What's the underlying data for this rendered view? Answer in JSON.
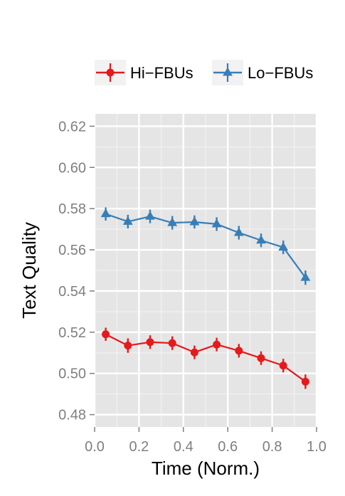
{
  "chart_data": {
    "type": "line",
    "xlabel": "Time (Norm.)",
    "ylabel": "Text Quality",
    "xlim": [
      0.0,
      1.0
    ],
    "ylim": [
      0.474,
      0.626
    ],
    "x_ticks": [
      "0.0",
      "0.2",
      "0.4",
      "0.6",
      "0.8",
      "1.0"
    ],
    "y_ticks": [
      "0.48",
      "0.50",
      "0.52",
      "0.54",
      "0.56",
      "0.58",
      "0.60",
      "0.62"
    ],
    "grid": true,
    "legend_position": "top",
    "x": [
      0.05,
      0.15,
      0.25,
      0.35,
      0.45,
      0.55,
      0.65,
      0.75,
      0.85,
      0.95
    ],
    "series": [
      {
        "name": "Hi−FBUs",
        "color": "#e41a1c",
        "marker": "circle",
        "values": [
          0.519,
          0.5135,
          0.5152,
          0.5147,
          0.5102,
          0.514,
          0.511,
          0.5074,
          0.5038,
          0.496
        ],
        "errors": [
          0.0032,
          0.0035,
          0.0033,
          0.0033,
          0.0033,
          0.0033,
          0.0033,
          0.0033,
          0.0033,
          0.0035
        ]
      },
      {
        "name": "Lo−FBUs",
        "color": "#377eb8",
        "marker": "triangle",
        "values": [
          0.5774,
          0.5737,
          0.5762,
          0.5731,
          0.5735,
          0.5725,
          0.5683,
          0.5646,
          0.5612,
          0.5465
        ],
        "errors": [
          0.0032,
          0.0033,
          0.0033,
          0.0033,
          0.0032,
          0.0033,
          0.0033,
          0.0033,
          0.0033,
          0.0035
        ]
      }
    ]
  }
}
